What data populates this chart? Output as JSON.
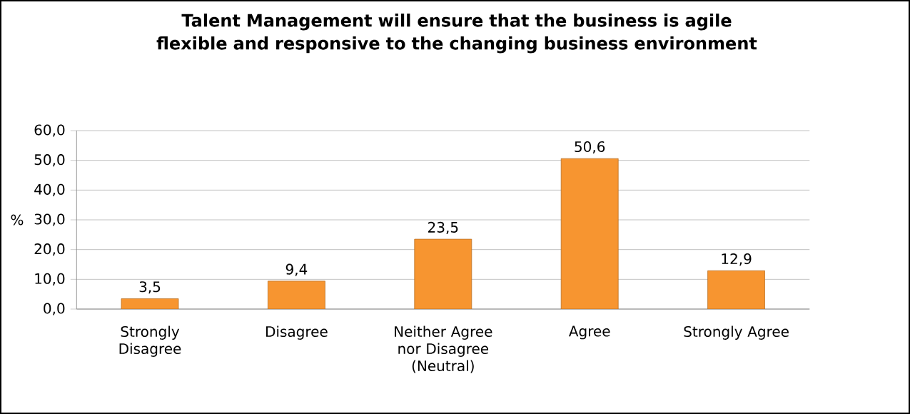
{
  "chart_data": {
    "type": "bar",
    "title": "Talent Management will ensure that the business is agile flexible and responsive to the changing business environment",
    "ylabel": "%",
    "categories": [
      "Strongly Disagree",
      "Disagree",
      "Neither Agree nor Disagree (Neutral)",
      "Agree",
      "Strongly Agree"
    ],
    "values": [
      3.5,
      9.4,
      23.5,
      50.6,
      12.9
    ],
    "value_labels": [
      "3,5",
      "9,4",
      "23,5",
      "50,6",
      "12,9"
    ],
    "color": "#f79530",
    "ylim": [
      0,
      60
    ],
    "yticks": [
      {
        "value": 0,
        "label": "0,0"
      },
      {
        "value": 10,
        "label": "10,0"
      },
      {
        "value": 20,
        "label": "20,0"
      },
      {
        "value": 30,
        "label": "30,0"
      },
      {
        "value": 40,
        "label": "40,0"
      },
      {
        "value": 50,
        "label": "50,0"
      },
      {
        "value": 60,
        "label": "60,0"
      }
    ],
    "grid": "y"
  }
}
